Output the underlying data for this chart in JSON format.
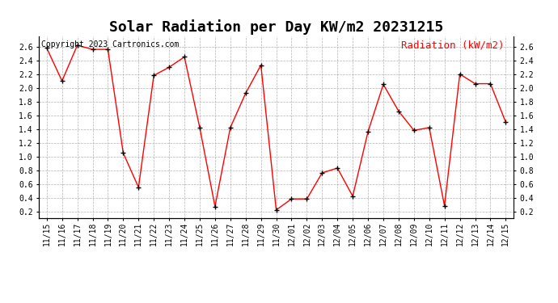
{
  "title": "Solar Radiation per Day KW/m2 20231215",
  "copyright_text": "Copyright 2023 Cartronics.com",
  "legend_label": "Radiation (kW/m2)",
  "dates": [
    "11/15",
    "11/16",
    "11/17",
    "11/18",
    "11/19",
    "11/20",
    "11/21",
    "11/22",
    "11/23",
    "11/24",
    "11/25",
    "11/26",
    "11/27",
    "11/28",
    "11/29",
    "11/30",
    "12/01",
    "12/02",
    "12/03",
    "12/04",
    "12/05",
    "12/06",
    "12/07",
    "12/08",
    "12/09",
    "12/10",
    "12/11",
    "12/12",
    "12/13",
    "12/14",
    "12/15"
  ],
  "values": [
    2.58,
    2.1,
    2.62,
    2.56,
    2.56,
    1.05,
    0.55,
    2.18,
    2.3,
    2.45,
    1.42,
    0.27,
    1.42,
    1.92,
    2.33,
    0.22,
    0.38,
    0.38,
    0.76,
    0.83,
    0.42,
    1.36,
    2.05,
    1.66,
    1.38,
    1.42,
    0.28,
    2.2,
    2.06,
    2.06,
    1.5
  ],
  "line_color": "red",
  "marker_color": "black",
  "marker": "+",
  "grid_color": "#aaaaaa",
  "background_color": "#ffffff",
  "title_fontsize": 13,
  "copyright_fontsize": 7,
  "legend_fontsize": 9,
  "tick_fontsize": 7,
  "ylim": [
    0.1,
    2.75
  ],
  "yticks": [
    0.2,
    0.4,
    0.6,
    0.8,
    1.0,
    1.2,
    1.4,
    1.6,
    1.8,
    2.0,
    2.2,
    2.4,
    2.6
  ]
}
